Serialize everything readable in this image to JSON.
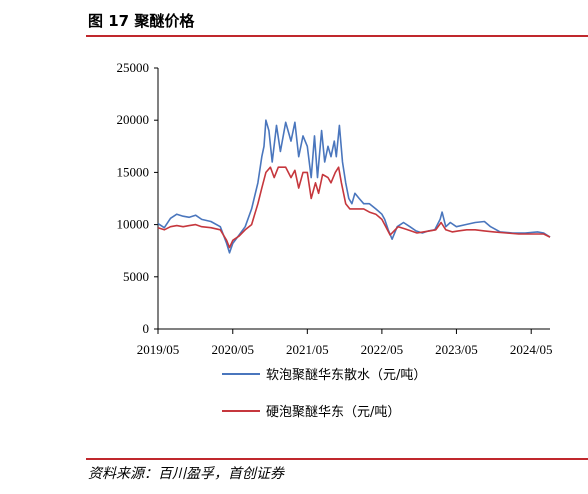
{
  "header": {
    "title": "图 17 聚醚价格"
  },
  "footer": {
    "source": "资料来源：百川盈孚，首创证券"
  },
  "colors": {
    "accent": "#c0282d",
    "series_soft": "#4a76bd",
    "series_rigid": "#c6373d"
  },
  "chart_data": {
    "type": "line",
    "title": "",
    "xlabel": "",
    "ylabel": "",
    "ylim": [
      0,
      25000
    ],
    "yticks": [
      0,
      5000,
      10000,
      15000,
      20000,
      25000
    ],
    "xlim": [
      "2019-05",
      "2024-08"
    ],
    "xticks": [
      "2019/05",
      "2020/05",
      "2021/05",
      "2022/05",
      "2023/05",
      "2024/05"
    ],
    "grid": false,
    "legend_position": "bottom",
    "series": [
      {
        "name": "软泡聚醚华东散水（元/吨）",
        "color": "#4a76bd",
        "points": [
          [
            "2019-05-01",
            10100
          ],
          [
            "2019-06-01",
            9700
          ],
          [
            "2019-07-01",
            10600
          ],
          [
            "2019-08-01",
            11000
          ],
          [
            "2019-09-01",
            10800
          ],
          [
            "2019-10-01",
            10700
          ],
          [
            "2019-11-01",
            10900
          ],
          [
            "2019-12-01",
            10500
          ],
          [
            "2020-01-15",
            10300
          ],
          [
            "2020-03-01",
            9800
          ],
          [
            "2020-04-01",
            8200
          ],
          [
            "2020-04-15",
            7300
          ],
          [
            "2020-05-01",
            8200
          ],
          [
            "2020-06-01",
            9000
          ],
          [
            "2020-07-01",
            9800
          ],
          [
            "2020-08-01",
            11500
          ],
          [
            "2020-09-01",
            14000
          ],
          [
            "2020-09-20",
            16500
          ],
          [
            "2020-10-01",
            17500
          ],
          [
            "2020-10-10",
            20000
          ],
          [
            "2020-10-25",
            19000
          ],
          [
            "2020-11-10",
            16000
          ],
          [
            "2020-12-01",
            19500
          ],
          [
            "2020-12-20",
            17000
          ],
          [
            "2021-01-15",
            19800
          ],
          [
            "2021-02-10",
            18000
          ],
          [
            "2021-03-01",
            19800
          ],
          [
            "2021-03-20",
            16500
          ],
          [
            "2021-04-10",
            18500
          ],
          [
            "2021-05-01",
            17500
          ],
          [
            "2021-05-20",
            14500
          ],
          [
            "2021-06-05",
            18500
          ],
          [
            "2021-06-20",
            14500
          ],
          [
            "2021-07-10",
            19000
          ],
          [
            "2021-07-25",
            16000
          ],
          [
            "2021-08-10",
            17500
          ],
          [
            "2021-08-25",
            16500
          ],
          [
            "2021-09-10",
            18000
          ],
          [
            "2021-09-20",
            16500
          ],
          [
            "2021-10-05",
            19500
          ],
          [
            "2021-10-20",
            16000
          ],
          [
            "2021-11-05",
            14000
          ],
          [
            "2021-11-20",
            12500
          ],
          [
            "2021-12-05",
            12000
          ],
          [
            "2021-12-20",
            13000
          ],
          [
            "2022-01-10",
            12500
          ],
          [
            "2022-02-01",
            12000
          ],
          [
            "2022-03-01",
            12000
          ],
          [
            "2022-04-01",
            11500
          ],
          [
            "2022-05-01",
            11000
          ],
          [
            "2022-05-15",
            10500
          ],
          [
            "2022-06-01",
            9500
          ],
          [
            "2022-06-20",
            8600
          ],
          [
            "2022-07-15",
            9800
          ],
          [
            "2022-08-15",
            10200
          ],
          [
            "2022-09-15",
            9800
          ],
          [
            "2022-10-15",
            9400
          ],
          [
            "2022-11-15",
            9200
          ],
          [
            "2022-12-15",
            9400
          ],
          [
            "2023-01-15",
            9500
          ],
          [
            "2023-02-10",
            10500
          ],
          [
            "2023-02-20",
            11200
          ],
          [
            "2023-03-10",
            9800
          ],
          [
            "2023-04-01",
            10200
          ],
          [
            "2023-05-01",
            9800
          ],
          [
            "2023-06-15",
            10000
          ],
          [
            "2023-08-01",
            10200
          ],
          [
            "2023-09-15",
            10300
          ],
          [
            "2023-10-15",
            9800
          ],
          [
            "2023-12-01",
            9300
          ],
          [
            "2024-02-01",
            9200
          ],
          [
            "2024-04-01",
            9200
          ],
          [
            "2024-06-01",
            9300
          ],
          [
            "2024-07-01",
            9200
          ],
          [
            "2024-08-01",
            8800
          ]
        ]
      },
      {
        "name": "硬泡聚醚华东（元/吨）",
        "color": "#c6373d",
        "points": [
          [
            "2019-05-01",
            9700
          ],
          [
            "2019-06-01",
            9500
          ],
          [
            "2019-07-01",
            9800
          ],
          [
            "2019-08-01",
            9900
          ],
          [
            "2019-09-01",
            9800
          ],
          [
            "2019-10-01",
            9900
          ],
          [
            "2019-11-01",
            10000
          ],
          [
            "2019-12-01",
            9800
          ],
          [
            "2020-01-15",
            9700
          ],
          [
            "2020-03-01",
            9500
          ],
          [
            "2020-04-01",
            8500
          ],
          [
            "2020-04-15",
            7800
          ],
          [
            "2020-05-01",
            8500
          ],
          [
            "2020-06-01",
            8900
          ],
          [
            "2020-07-01",
            9500
          ],
          [
            "2020-08-01",
            10000
          ],
          [
            "2020-09-01",
            12000
          ],
          [
            "2020-09-20",
            13500
          ],
          [
            "2020-10-10",
            15000
          ],
          [
            "2020-11-01",
            15500
          ],
          [
            "2020-11-20",
            14500
          ],
          [
            "2020-12-10",
            15500
          ],
          [
            "2021-01-15",
            15500
          ],
          [
            "2021-02-10",
            14500
          ],
          [
            "2021-03-01",
            15200
          ],
          [
            "2021-03-20",
            13500
          ],
          [
            "2021-04-10",
            15000
          ],
          [
            "2021-05-01",
            15000
          ],
          [
            "2021-05-20",
            12500
          ],
          [
            "2021-06-10",
            14000
          ],
          [
            "2021-06-25",
            13000
          ],
          [
            "2021-07-15",
            14800
          ],
          [
            "2021-08-10",
            14500
          ],
          [
            "2021-08-25",
            14000
          ],
          [
            "2021-09-15",
            15000
          ],
          [
            "2021-10-01",
            15500
          ],
          [
            "2021-10-15",
            14000
          ],
          [
            "2021-11-05",
            12000
          ],
          [
            "2021-11-25",
            11500
          ],
          [
            "2022-01-01",
            11500
          ],
          [
            "2022-02-01",
            11500
          ],
          [
            "2022-03-01",
            11200
          ],
          [
            "2022-04-01",
            11000
          ],
          [
            "2022-05-01",
            10500
          ],
          [
            "2022-05-20",
            9800
          ],
          [
            "2022-06-10",
            9000
          ],
          [
            "2022-06-25",
            9300
          ],
          [
            "2022-07-20",
            9800
          ],
          [
            "2022-08-20",
            9600
          ],
          [
            "2022-09-20",
            9400
          ],
          [
            "2022-10-20",
            9200
          ],
          [
            "2022-11-20",
            9300
          ],
          [
            "2022-12-20",
            9400
          ],
          [
            "2023-01-20",
            9500
          ],
          [
            "2023-02-15",
            10200
          ],
          [
            "2023-03-10",
            9500
          ],
          [
            "2023-04-10",
            9300
          ],
          [
            "2023-05-10",
            9400
          ],
          [
            "2023-06-20",
            9500
          ],
          [
            "2023-08-01",
            9500
          ],
          [
            "2023-09-15",
            9400
          ],
          [
            "2023-11-01",
            9300
          ],
          [
            "2024-01-01",
            9200
          ],
          [
            "2024-03-01",
            9100
          ],
          [
            "2024-05-01",
            9100
          ],
          [
            "2024-07-01",
            9100
          ],
          [
            "2024-08-01",
            8800
          ]
        ]
      }
    ]
  }
}
